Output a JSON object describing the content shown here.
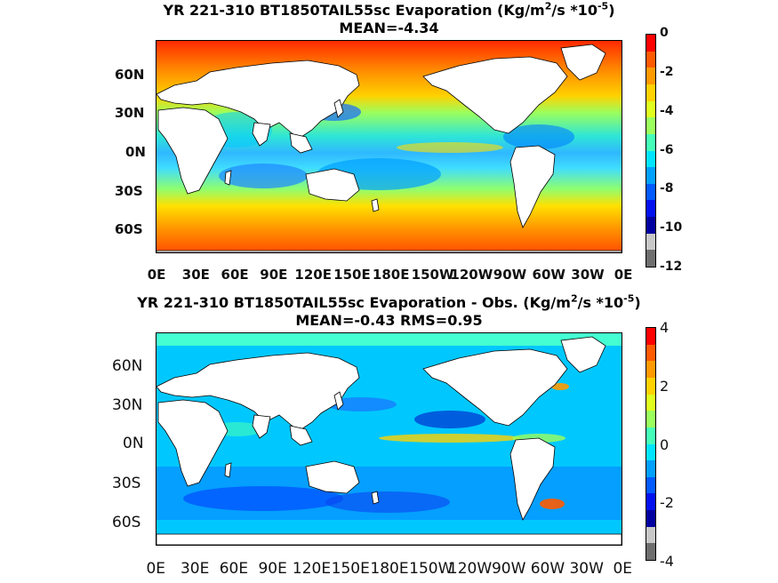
{
  "panels": [
    {
      "title_line1_pre": "YR 221-310 BT1850TAIL55sc  Evaporation (Kg/m",
      "title_line1_sup1": "2",
      "title_line1_mid": "/s *10",
      "title_line1_sup2": "-5",
      "title_line1_post": ")",
      "title_line2": "MEAN=-4.34",
      "lat_labels": [
        "60N",
        "30N",
        "0N",
        "30S",
        "60S"
      ],
      "lon_labels": [
        "0E",
        "30E",
        "60E",
        "90E",
        "120E",
        "150E",
        "180E",
        "150W",
        "120W",
        "90W",
        "60W",
        "30W",
        "0E"
      ],
      "colorbar": {
        "ticks": [
          "0",
          "-2",
          "-4",
          "-6",
          "-8",
          "-10",
          "-12"
        ],
        "range": [
          -12,
          0
        ],
        "colors": [
          "#ff0000",
          "#ff5a00",
          "#ff9a00",
          "#ffd200",
          "#e0ff1e",
          "#9bff5e",
          "#45ffb9",
          "#00e5ff",
          "#00a0ff",
          "#005aff",
          "#0010f0",
          "#0000a0",
          "#c8c8c8",
          "#6e6e6e"
        ]
      }
    },
    {
      "title_line1_pre": "YR 221-310 BT1850TAIL55sc Evaporation - Obs. (Kg/m",
      "title_line1_sup1": "2",
      "title_line1_mid": "/s *10",
      "title_line1_sup2": "-5",
      "title_line1_post": ")",
      "title_line2": "MEAN=-0.43   RMS=0.95",
      "lat_labels": [
        "60N",
        "30N",
        "0N",
        "30S",
        "60S"
      ],
      "lon_labels": [
        "0E",
        "30E",
        "60E",
        "90E",
        "120E",
        "150E",
        "180E",
        "150W",
        "120W",
        "90W",
        "60W",
        "30W",
        "0E"
      ],
      "colorbar": {
        "ticks": [
          "4",
          "2",
          "0",
          "-2",
          "-4"
        ],
        "range": [
          -4,
          4
        ],
        "colors": [
          "#ff0000",
          "#ff5a00",
          "#ff9a00",
          "#ffd200",
          "#e0ff1e",
          "#9bff5e",
          "#45ffb9",
          "#00e5ff",
          "#00a0ff",
          "#005aff",
          "#0010f0",
          "#0000a0",
          "#c8c8c8",
          "#6e6e6e"
        ]
      }
    }
  ],
  "palette": {
    "land": "#ffffff",
    "coast": "#000000"
  }
}
